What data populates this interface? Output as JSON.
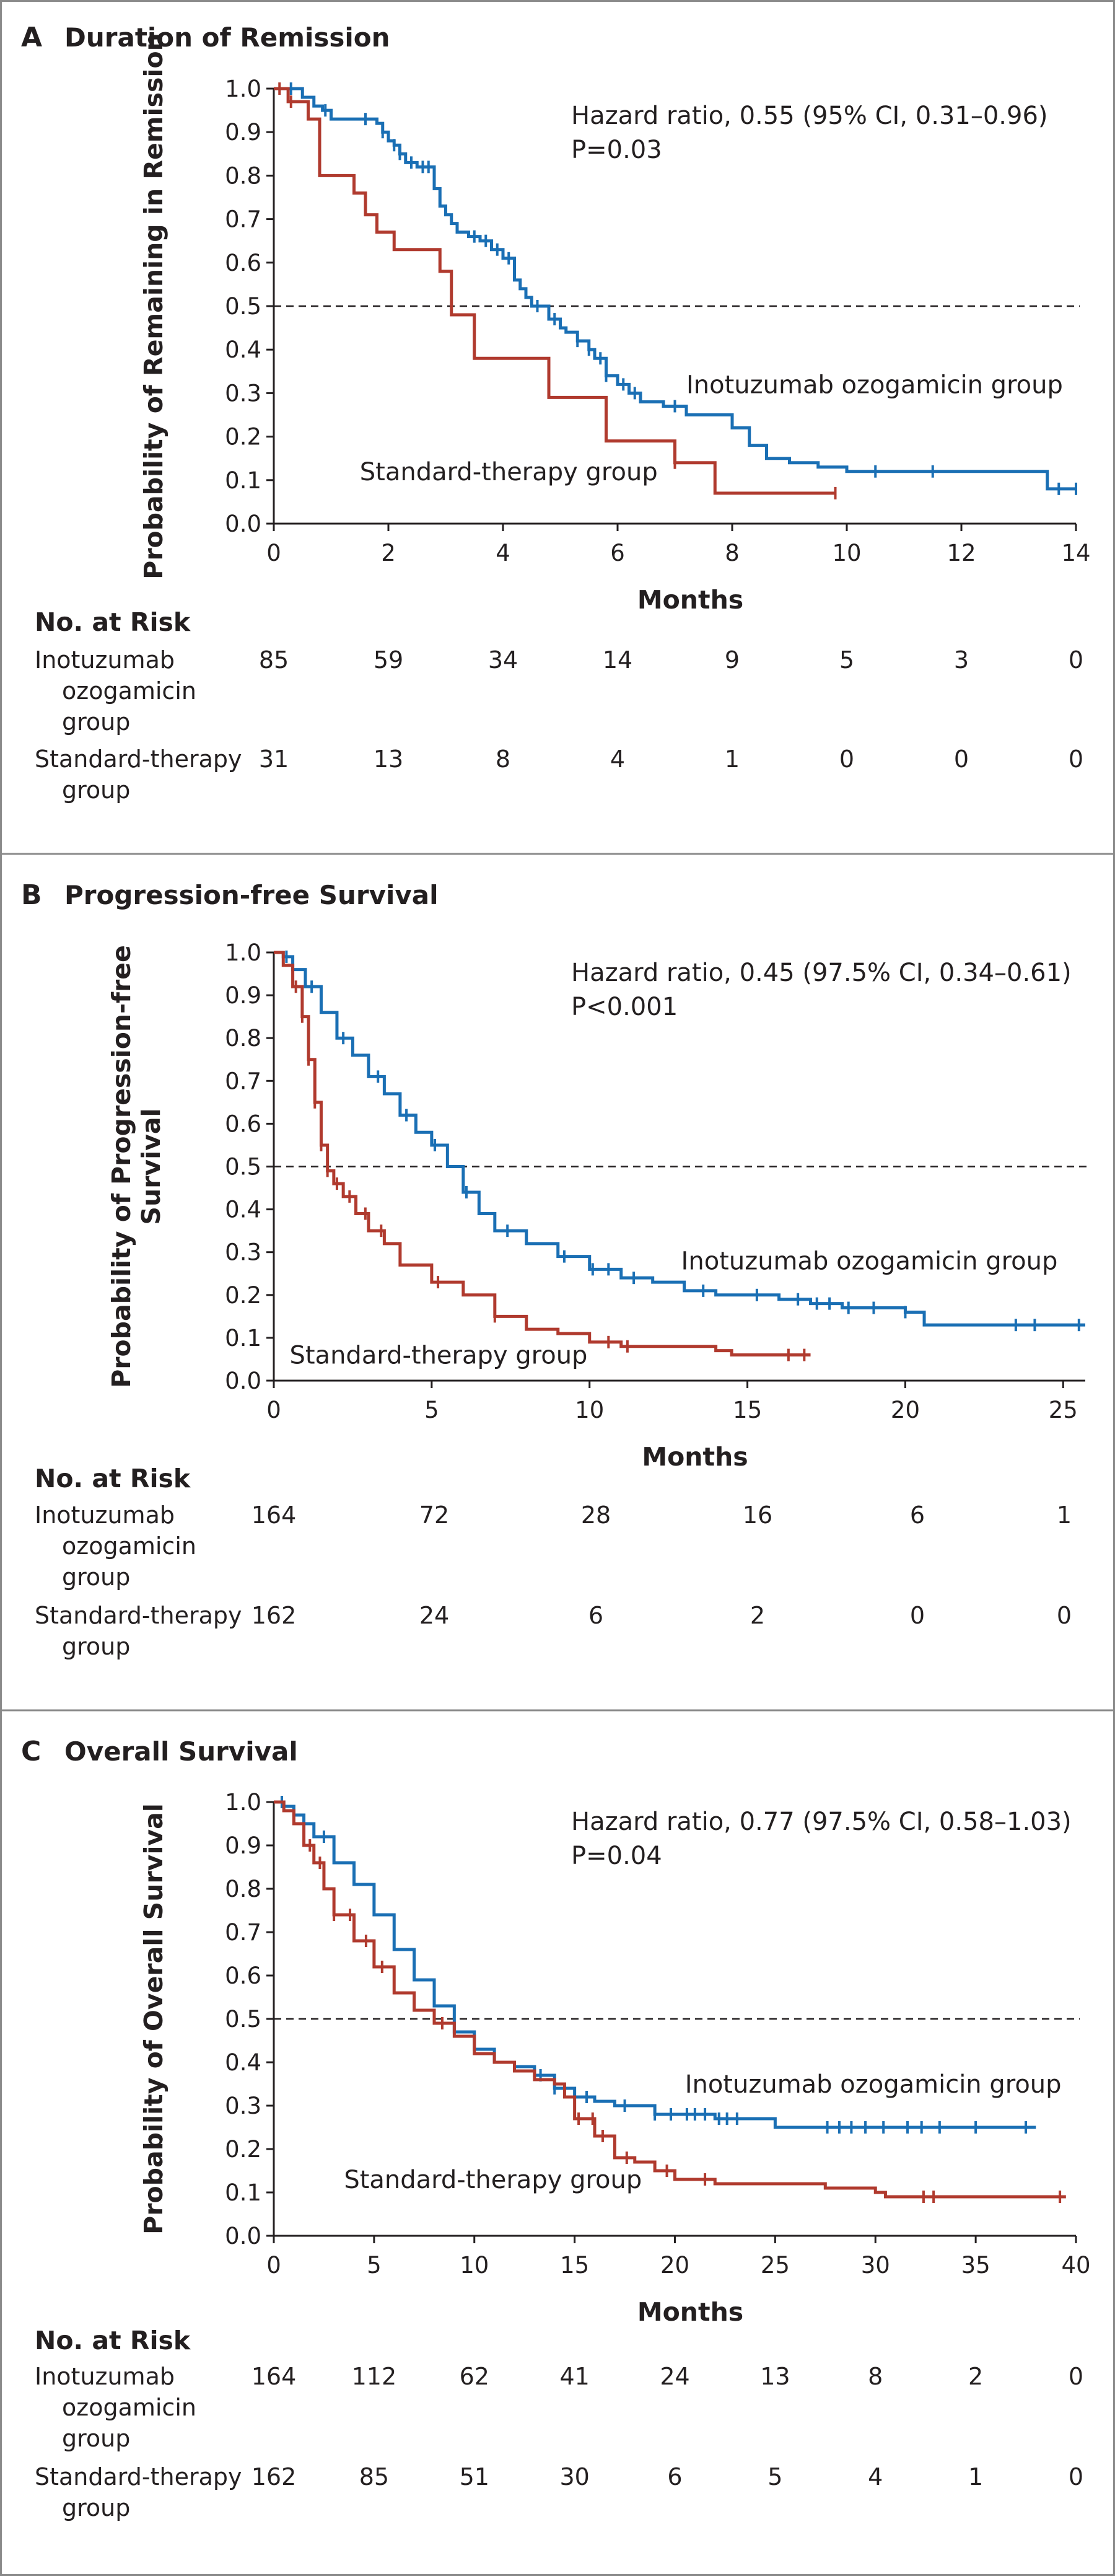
{
  "colors": {
    "inotuzumab": "#1a6fb4",
    "standard": "#b03a2e",
    "frame": "#8a8a8a",
    "text": "#231f20"
  },
  "chart_data": [
    {
      "type": "line",
      "panel_letter": "A",
      "title": "Duration of Remission",
      "xlabel": "Months",
      "ylabel": "Probability of Remaining in Remission",
      "xlim": [
        0,
        14
      ],
      "ylim": [
        0,
        1
      ],
      "xticks": [
        0,
        2,
        4,
        6,
        8,
        10,
        12,
        14
      ],
      "yticks": [
        0.0,
        0.1,
        0.2,
        0.3,
        0.4,
        0.5,
        0.6,
        0.7,
        0.8,
        0.9,
        1.0
      ],
      "reference_line": 0.5,
      "hazard_text": "Hazard ratio, 0.55 (95% CI, 0.31–0.96)",
      "p_text": "P=0.03",
      "series": [
        {
          "name": "Inotuzumab ozogamicin group",
          "label": "Inotuzumab ozogamicin group",
          "label_at": [
            7.2,
            0.3
          ],
          "x": [
            0,
            0.3,
            0.5,
            0.7,
            0.85,
            1.0,
            1.5,
            1.8,
            1.9,
            2.0,
            2.1,
            2.2,
            2.3,
            2.5,
            2.7,
            2.8,
            2.9,
            3.0,
            3.1,
            3.2,
            3.4,
            3.6,
            3.8,
            4.0,
            4.2,
            4.3,
            4.4,
            4.5,
            4.6,
            4.8,
            5.0,
            5.1,
            5.3,
            5.5,
            5.6,
            5.8,
            6.0,
            6.2,
            6.4,
            6.8,
            7.2,
            7.5,
            7.8,
            8.0,
            8.3,
            8.6,
            9.0,
            9.5,
            10.0,
            11.0,
            12.5,
            13.4,
            13.5,
            14.0
          ],
          "y": [
            1.0,
            1.0,
            0.98,
            0.96,
            0.95,
            0.93,
            0.93,
            0.92,
            0.9,
            0.88,
            0.87,
            0.85,
            0.83,
            0.82,
            0.82,
            0.77,
            0.73,
            0.71,
            0.69,
            0.67,
            0.66,
            0.65,
            0.63,
            0.61,
            0.56,
            0.54,
            0.52,
            0.5,
            0.5,
            0.47,
            0.45,
            0.44,
            0.42,
            0.4,
            0.38,
            0.34,
            0.32,
            0.3,
            0.28,
            0.27,
            0.25,
            0.25,
            0.25,
            0.22,
            0.18,
            0.15,
            0.14,
            0.13,
            0.12,
            0.12,
            0.12,
            0.12,
            0.08,
            0.08
          ],
          "censor_x": [
            0.3,
            0.9,
            1.6,
            1.9,
            2.1,
            2.2,
            2.4,
            2.6,
            2.7,
            3.5,
            3.7,
            3.9,
            4.1,
            4.6,
            4.9,
            5.3,
            5.5,
            5.7,
            5.8,
            6.1,
            6.3,
            7.0,
            10.5,
            11.5,
            13.7,
            14.0
          ]
        },
        {
          "name": "Standard-therapy group",
          "label": "Standard-therapy group",
          "label_at": [
            1.5,
            0.1
          ],
          "x": [
            0,
            0.25,
            0.5,
            0.6,
            0.8,
            1.0,
            1.4,
            1.6,
            1.8,
            2.1,
            2.9,
            3.1,
            3.5,
            4.8,
            5.5,
            5.8,
            6.0,
            7.0,
            7.7,
            8.0,
            9.8
          ],
          "y": [
            1.0,
            0.97,
            0.97,
            0.93,
            0.8,
            0.8,
            0.76,
            0.71,
            0.67,
            0.63,
            0.58,
            0.48,
            0.38,
            0.29,
            0.29,
            0.19,
            0.19,
            0.14,
            0.07,
            0.07,
            0.07
          ],
          "censor_x": [
            0.1,
            0.3,
            7.0,
            9.8
          ]
        }
      ],
      "risk_table": {
        "title": "No. at Risk",
        "groups": [
          {
            "label": [
              "Inotuzumab",
              "ozogamicin",
              "group"
            ],
            "values": [
              85,
              59,
              34,
              14,
              9,
              5,
              3,
              0
            ]
          },
          {
            "label": [
              "Standard-therapy",
              "group"
            ],
            "values": [
              31,
              13,
              8,
              4,
              1,
              0,
              0,
              0
            ]
          }
        ]
      }
    },
    {
      "type": "line",
      "panel_letter": "B",
      "title": "Progression-free Survival",
      "xlabel": "Months",
      "ylabel": "Probability of Progression-free Survival",
      "ylabel_lines": [
        "Probability of Progression-free",
        "Survival"
      ],
      "xlim": [
        0,
        25.7
      ],
      "ylim": [
        0,
        1
      ],
      "xticks": [
        0,
        5,
        10,
        15,
        20,
        25
      ],
      "yticks": [
        0.0,
        0.1,
        0.2,
        0.3,
        0.4,
        0.5,
        0.6,
        0.7,
        0.8,
        0.9,
        1.0
      ],
      "reference_line": 0.5,
      "hazard_text": "Hazard ratio, 0.45 (97.5% CI, 0.34–0.61)",
      "p_text": "P<0.001",
      "series": [
        {
          "name": "Inotuzumab ozogamicin group",
          "label": "Inotuzumab ozogamicin group",
          "label_at": [
            12.9,
            0.26
          ],
          "x": [
            0,
            0.3,
            0.6,
            1.0,
            1.5,
            2.0,
            2.5,
            3.0,
            3.5,
            4.0,
            4.5,
            5.0,
            5.5,
            6.0,
            6.5,
            7.0,
            8.0,
            9.0,
            10.0,
            11.0,
            12.0,
            13.0,
            14.0,
            15.0,
            16.0,
            17.0,
            18.0,
            19.0,
            20.0,
            20.6,
            22.0,
            24.0,
            25.7
          ],
          "y": [
            1.0,
            0.99,
            0.96,
            0.92,
            0.86,
            0.8,
            0.76,
            0.71,
            0.67,
            0.62,
            0.58,
            0.55,
            0.5,
            0.44,
            0.39,
            0.35,
            0.32,
            0.29,
            0.26,
            0.24,
            0.23,
            0.21,
            0.2,
            0.2,
            0.19,
            0.18,
            0.17,
            0.17,
            0.16,
            0.13,
            0.13,
            0.13,
            0.13
          ],
          "censor_x": [
            0.4,
            1.2,
            2.2,
            3.3,
            4.2,
            5.1,
            6.1,
            7.4,
            9.2,
            10.1,
            10.6,
            11.4,
            13.6,
            15.3,
            16.6,
            17.2,
            17.6,
            18.2,
            19.0,
            20.0,
            23.5,
            24.1,
            25.5
          ]
        },
        {
          "name": "Standard-therapy group",
          "label": "Standard-therapy group",
          "label_at": [
            0.5,
            0.04
          ],
          "x": [
            0,
            0.3,
            0.6,
            0.9,
            1.1,
            1.3,
            1.5,
            1.7,
            1.9,
            2.2,
            2.6,
            3.0,
            3.5,
            4.0,
            5.0,
            6.0,
            7.0,
            8.0,
            9.0,
            10.0,
            11.0,
            13.0,
            14.0,
            14.5,
            17.0
          ],
          "y": [
            1.0,
            0.97,
            0.92,
            0.85,
            0.75,
            0.65,
            0.55,
            0.49,
            0.46,
            0.43,
            0.39,
            0.35,
            0.32,
            0.27,
            0.23,
            0.2,
            0.15,
            0.12,
            0.11,
            0.09,
            0.08,
            0.08,
            0.07,
            0.06,
            0.06
          ],
          "censor_x": [
            0.7,
            0.9,
            1.1,
            1.3,
            1.5,
            1.7,
            2.0,
            2.4,
            2.9,
            3.4,
            5.2,
            7.0,
            10.6,
            11.2,
            16.3,
            16.8
          ]
        }
      ],
      "risk_table": {
        "title": "No. at Risk",
        "groups": [
          {
            "label": [
              "Inotuzumab",
              "ozogamicin",
              "group"
            ],
            "values": [
              164,
              72,
              28,
              16,
              6,
              1
            ]
          },
          {
            "label": [
              "Standard-therapy",
              "group"
            ],
            "values": [
              162,
              24,
              6,
              2,
              0,
              0
            ]
          }
        ]
      }
    },
    {
      "type": "line",
      "panel_letter": "C",
      "title": "Overall Survival",
      "xlabel": "Months",
      "ylabel": "Probability of Overall Survival",
      "xlim": [
        0,
        40
      ],
      "ylim": [
        0,
        1
      ],
      "xticks": [
        0,
        5,
        10,
        15,
        20,
        25,
        30,
        35,
        40
      ],
      "yticks": [
        0.0,
        0.1,
        0.2,
        0.3,
        0.4,
        0.5,
        0.6,
        0.7,
        0.8,
        0.9,
        1.0
      ],
      "reference_line": 0.5,
      "hazard_text": "Hazard ratio, 0.77 (97.5% CI, 0.58–1.03)",
      "p_text": "P=0.04",
      "series": [
        {
          "name": "Inotuzumab ozogamicin group",
          "label": "Inotuzumab ozogamicin group",
          "label_at": [
            20.5,
            0.33
          ],
          "x": [
            0,
            0.5,
            1.0,
            1.5,
            2.0,
            3.0,
            4.0,
            5.0,
            6.0,
            7.0,
            8.0,
            9.0,
            10.0,
            11.0,
            12.0,
            13.0,
            14.0,
            15.0,
            16.0,
            17.0,
            18.0,
            19.0,
            20.0,
            22.0,
            24.0,
            25.0,
            28.0,
            30.0,
            33.0,
            36.0,
            38.0
          ],
          "y": [
            1.0,
            0.99,
            0.97,
            0.95,
            0.92,
            0.86,
            0.81,
            0.74,
            0.66,
            0.59,
            0.53,
            0.47,
            0.43,
            0.4,
            0.39,
            0.37,
            0.34,
            0.32,
            0.31,
            0.3,
            0.3,
            0.28,
            0.28,
            0.27,
            0.27,
            0.25,
            0.25,
            0.25,
            0.25,
            0.25,
            0.25
          ],
          "censor_x": [
            0.4,
            1.0,
            2.5,
            13.3,
            14.0,
            15.6,
            17.5,
            19.0,
            19.8,
            20.6,
            21.0,
            21.5,
            22.2,
            22.6,
            23.1,
            27.6,
            28.2,
            28.8,
            29.5,
            30.4,
            31.6,
            32.3,
            33.2,
            35.0,
            37.5
          ]
        },
        {
          "name": "Standard-therapy group",
          "label": "Standard-therapy group",
          "label_at": [
            3.5,
            0.11
          ],
          "x": [
            0,
            0.5,
            1.0,
            1.5,
            2.0,
            2.5,
            3.0,
            4.0,
            5.0,
            6.0,
            7.0,
            8.0,
            9.0,
            10.0,
            11.0,
            12.0,
            13.0,
            14.0,
            14.5,
            15.0,
            16.0,
            17.0,
            18.0,
            19.0,
            20.0,
            22.0,
            25.0,
            27.5,
            30.0,
            30.5,
            35.0,
            39.5
          ],
          "y": [
            1.0,
            0.98,
            0.95,
            0.9,
            0.86,
            0.8,
            0.74,
            0.68,
            0.62,
            0.56,
            0.52,
            0.49,
            0.46,
            0.42,
            0.4,
            0.38,
            0.36,
            0.35,
            0.32,
            0.27,
            0.23,
            0.18,
            0.17,
            0.15,
            0.13,
            0.12,
            0.12,
            0.11,
            0.1,
            0.09,
            0.09,
            0.09
          ],
          "censor_x": [
            1.8,
            2.3,
            3.0,
            3.8,
            4.6,
            5.4,
            8.4,
            15.2,
            15.9,
            16.4,
            17.6,
            19.6,
            21.5,
            32.4,
            32.9,
            39.2
          ]
        }
      ],
      "risk_table": {
        "title": "No. at Risk",
        "groups": [
          {
            "label": [
              "Inotuzumab",
              "ozogamicin",
              "group"
            ],
            "values": [
              164,
              112,
              62,
              41,
              24,
              13,
              8,
              2,
              0
            ]
          },
          {
            "label": [
              "Standard-therapy",
              "group"
            ],
            "values": [
              162,
              85,
              51,
              30,
              6,
              5,
              4,
              1,
              0
            ]
          }
        ]
      }
    }
  ]
}
